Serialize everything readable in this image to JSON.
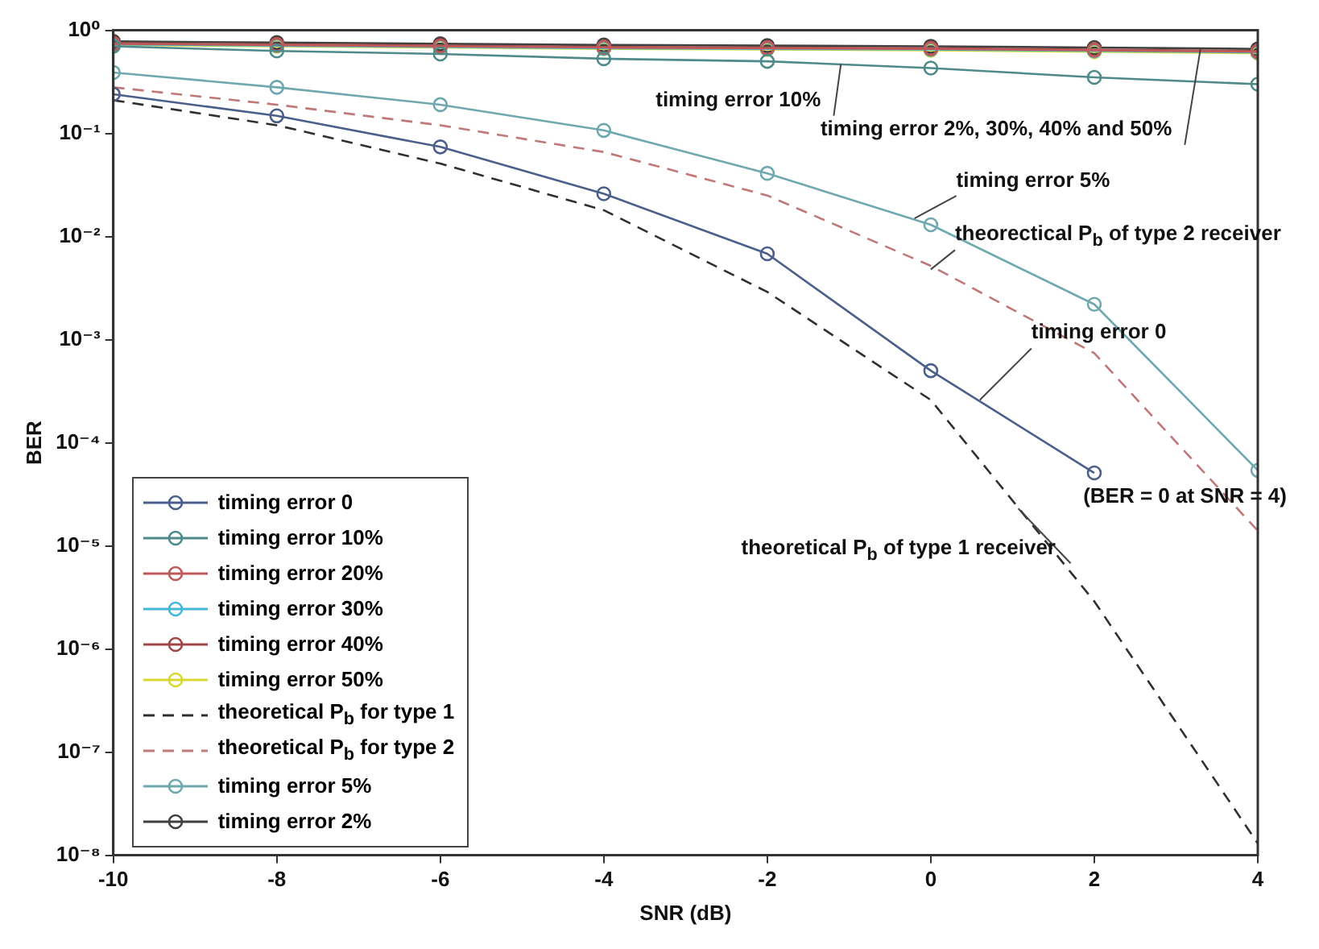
{
  "chart_data": {
    "type": "line",
    "xlabel": "SNR (dB)",
    "ylabel": "BER",
    "x": [
      -10,
      -8,
      -6,
      -4,
      -2,
      0,
      2,
      4
    ],
    "xlim": [
      -10,
      4
    ],
    "xticks": [
      -10,
      -8,
      -6,
      -4,
      -2,
      0,
      2,
      4
    ],
    "log": "y",
    "ylim": [
      1e-08,
      1
    ],
    "yticks": [
      {
        "value": 1,
        "label": "10⁰"
      },
      {
        "value": 0.1,
        "label": "10⁻¹"
      },
      {
        "value": 0.01,
        "label": "10⁻²"
      },
      {
        "value": 0.001,
        "label": "10⁻³"
      },
      {
        "value": 0.0001,
        "label": "10⁻⁴"
      },
      {
        "value": 1e-05,
        "label": "10⁻⁵"
      },
      {
        "value": 1e-06,
        "label": "10⁻⁶"
      },
      {
        "value": 1e-07,
        "label": "10⁻⁷"
      },
      {
        "value": 1e-08,
        "label": "10⁻⁸"
      }
    ],
    "grid": false,
    "legend": "bottom left",
    "series": [
      {
        "name": "timing error 0",
        "color": "#4a5f8a",
        "marker": "circle",
        "line_style": "solid",
        "values": [
          0.24,
          0.148,
          0.074,
          0.026,
          0.0068,
          0.0005,
          5.1e-05,
          null
        ]
      },
      {
        "name": "timing error 10%",
        "color": "#4f8a8a",
        "marker": "circle",
        "line_style": "solid",
        "values": [
          0.7,
          0.63,
          0.59,
          0.53,
          0.5,
          0.43,
          0.35,
          0.3
        ]
      },
      {
        "name": "timing error 20%",
        "color": "#c05a5a",
        "marker": "circle",
        "line_style": "solid",
        "values": [
          0.74,
          0.72,
          0.7,
          0.68,
          0.67,
          0.66,
          0.64,
          0.62
        ]
      },
      {
        "name": "timing error 30%",
        "color": "#45b8d8",
        "marker": "circle",
        "line_style": "solid",
        "values": [
          0.73,
          0.71,
          0.69,
          0.67,
          0.66,
          0.65,
          0.63,
          0.61
        ]
      },
      {
        "name": "timing error 40%",
        "color": "#a04848",
        "marker": "circle",
        "line_style": "solid",
        "values": [
          0.75,
          0.73,
          0.71,
          0.69,
          0.68,
          0.67,
          0.65,
          0.63
        ]
      },
      {
        "name": "timing error 50%",
        "color": "#d8d830",
        "marker": "circle",
        "line_style": "solid",
        "values": [
          0.72,
          0.7,
          0.68,
          0.66,
          0.65,
          0.64,
          0.62,
          0.6
        ]
      },
      {
        "name": "theoretical P$_{b}$ for type 1",
        "color": "#303030",
        "marker": "none",
        "line_style": "dashed",
        "values": [
          0.21,
          0.12,
          0.051,
          0.018,
          0.0029,
          0.00026,
          2.9e-06,
          1.3e-08
        ]
      },
      {
        "name": "theoretical P$_{b}$ for type 2",
        "color": "#c07878",
        "marker": "none",
        "line_style": "dashed",
        "values": [
          0.28,
          0.19,
          0.12,
          0.066,
          0.025,
          0.0052,
          0.00074,
          1.4e-05
        ]
      },
      {
        "name": "timing error 5%",
        "color": "#70a8b0",
        "marker": "circle",
        "line_style": "solid",
        "values": [
          0.39,
          0.28,
          0.19,
          0.107,
          0.041,
          0.013,
          0.0022,
          5.4e-05
        ]
      },
      {
        "name": "timing error 2%",
        "color": "#404040",
        "marker": "circle",
        "line_style": "solid",
        "values": [
          0.78,
          0.76,
          0.74,
          0.72,
          0.71,
          0.7,
          0.68,
          0.66
        ]
      }
    ],
    "annotations": [
      {
        "text": "timing error 10%",
        "x": -1.1,
        "y": 0.47
      },
      {
        "text": "timing error 2%, 30%, 40% and 50%",
        "x": 3.3,
        "y": 0.67
      },
      {
        "text": "timing error 5%",
        "x": -0.2,
        "y": 0.015
      },
      {
        "text": "theorectical P$_{b}$ of type 2 receiver",
        "x": 0,
        "y": 0.0048
      },
      {
        "text": "timing error 0",
        "x": 0.6,
        "y": 0.00026
      },
      "(BER = 0 at SNR = 4)",
      {
        "text": "theoretical P$_{b}$ of type 1 receiver",
        "x": 1.07,
        "y": 2.3e-05
      }
    ]
  }
}
